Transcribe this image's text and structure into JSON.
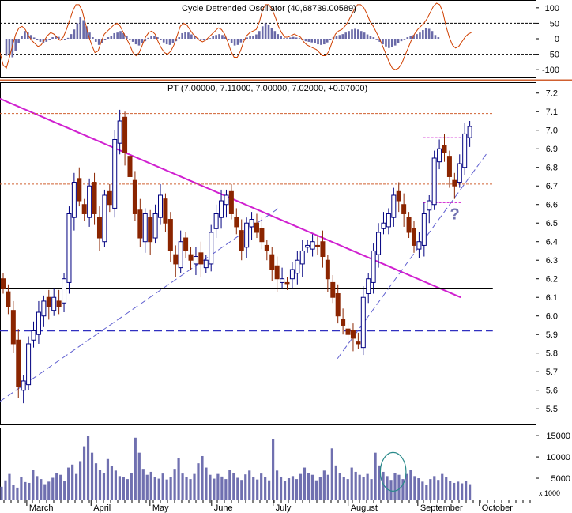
{
  "chart_data": [
    {
      "type": "line",
      "panel": "indicator",
      "header": "Cycle Detrended Oscillator (40,68739.00589)",
      "ylim": [
        -120,
        120
      ],
      "yticks": [
        100,
        50,
        0,
        -50,
        -100
      ],
      "reference_lines": [
        50,
        -50
      ],
      "oscillator_line_color": "#d04000",
      "bar_color": "#6a6aa8",
      "x_end": 0.88,
      "osc": [
        -45,
        -85,
        -95,
        -60,
        -20,
        15,
        35,
        40,
        30,
        10,
        -5,
        -15,
        -25,
        -20,
        -5,
        10,
        20,
        15,
        5,
        -5,
        5,
        30,
        60,
        90,
        110,
        110,
        90,
        50,
        10,
        -20,
        -45,
        -40,
        -10,
        15,
        25,
        35,
        45,
        50,
        40,
        20,
        0,
        -20,
        -45,
        -55,
        -45,
        -20,
        5,
        20,
        25,
        15,
        -10,
        -30,
        -45,
        -50,
        -40,
        -20,
        10,
        40,
        50,
        45,
        30,
        15,
        5,
        -5,
        -10,
        -5,
        5,
        15,
        25,
        35,
        30,
        15,
        -10,
        -40,
        -60,
        -60,
        -40,
        -10,
        10,
        20,
        25,
        30,
        55,
        95,
        110,
        110,
        95,
        70,
        40,
        20,
        5,
        5,
        10,
        15,
        10,
        5,
        -10,
        -20,
        -25,
        -30,
        -35,
        -45,
        -55,
        -55,
        -40,
        -10,
        15,
        25,
        30,
        40,
        55,
        75,
        95,
        110,
        110,
        100,
        80,
        55,
        40,
        20,
        0,
        -25,
        -50,
        -75,
        -95,
        -100,
        -95,
        -80,
        -55,
        -30,
        -5,
        15,
        30,
        40,
        50,
        65,
        85,
        105,
        115,
        110,
        85,
        40,
        5,
        -20,
        -30,
        -25,
        -10,
        5,
        15,
        20
      ],
      "bars": [
        -55,
        -50,
        -60,
        -40,
        -15,
        10,
        25,
        20,
        12,
        4,
        -4,
        -10,
        -15,
        -10,
        -3,
        5,
        8,
        6,
        0,
        -4,
        3,
        15,
        30,
        50,
        70,
        60,
        40,
        20,
        5,
        -10,
        -20,
        -15,
        -5,
        5,
        10,
        18,
        20,
        25,
        18,
        10,
        -2,
        -10,
        -18,
        -22,
        -15,
        -8,
        3,
        8,
        10,
        5,
        -5,
        -12,
        -18,
        -20,
        -15,
        -8,
        5,
        18,
        22,
        20,
        14,
        8,
        2,
        -2,
        -4,
        -2,
        2,
        8,
        12,
        15,
        12,
        6,
        -5,
        -15,
        -22,
        -20,
        -12,
        -4,
        4,
        8,
        10,
        14,
        25,
        40,
        50,
        45,
        35,
        25,
        15,
        8,
        2,
        2,
        4,
        6,
        4,
        2,
        -4,
        -8,
        -10,
        -12,
        -14,
        -18,
        -20,
        -18,
        -12,
        -4,
        5,
        10,
        12,
        15,
        20,
        25,
        30,
        32,
        30,
        25,
        20,
        14,
        10,
        5,
        -2,
        -10,
        -18,
        -25,
        -30,
        -28,
        -22,
        -15,
        -8,
        -2,
        5,
        10,
        12,
        15,
        20,
        28,
        35,
        32,
        25,
        12,
        5
      ],
      "last_label": ""
    },
    {
      "type": "candlestick",
      "panel": "price",
      "header": "PT (7.00000, 7.11000, 7.00000, 7.02000, +0.07000)",
      "ylim": [
        5.42,
        7.25
      ],
      "yticks": [
        7.2,
        7.1,
        7.0,
        6.9,
        6.8,
        6.7,
        6.6,
        6.5,
        6.4,
        6.3,
        6.2,
        6.1,
        6.0,
        5.9,
        5.8,
        5.7,
        5.6,
        5.5
      ],
      "x_labels": [
        {
          "label": "March",
          "x": 0.05
        },
        {
          "label": "April",
          "x": 0.17
        },
        {
          "label": "May",
          "x": 0.28
        },
        {
          "label": "June",
          "x": 0.395
        },
        {
          "label": "July",
          "x": 0.51
        },
        {
          "label": "August",
          "x": 0.65
        },
        {
          "label": "September",
          "x": 0.78
        },
        {
          "label": "October",
          "x": 0.895
        }
      ],
      "up_color": "#000080",
      "down_color": "#8b2500",
      "prices": [
        6.15,
        6.05,
        5.85,
        5.62,
        5.65,
        5.85,
        5.92,
        6.02,
        6.08,
        6.05,
        6.1,
        6.05,
        6.2,
        6.55,
        6.72,
        6.62,
        6.55,
        6.7,
        6.55,
        6.42,
        6.65,
        6.6,
        6.95,
        7.05,
        6.88,
        6.75,
        6.55,
        6.42,
        6.55,
        6.4,
        6.55,
        6.65,
        6.5,
        6.35,
        6.28,
        6.4,
        6.35,
        6.3,
        6.32,
        6.28,
        6.3,
        6.45,
        6.55,
        6.62,
        6.65,
        6.55,
        6.48,
        6.35,
        6.5,
        6.52,
        6.45,
        6.4,
        6.35,
        6.25,
        6.2,
        6.2,
        6.18,
        6.25,
        6.3,
        6.35,
        6.38,
        6.4,
        6.38,
        6.32,
        6.2,
        6.1,
        6.0,
        5.95,
        5.9,
        5.88,
        5.85,
        6.1,
        6.2,
        6.35,
        6.45,
        6.5,
        6.55,
        6.65,
        6.62,
        6.55,
        6.45,
        6.38,
        6.4,
        6.55,
        6.62,
        6.85,
        6.9,
        6.88,
        6.75,
        6.7,
        6.82,
        6.98,
        7.02
      ],
      "x_end": 0.877,
      "annotations": [
        {
          "text": "?",
          "x": 0.84,
          "y": 6.52,
          "color": "#7070b0"
        }
      ],
      "lines": [
        {
          "name": "downtrend",
          "color": "#d020d0",
          "x1": 0.0,
          "y1": 7.17,
          "x2": 0.86,
          "y2": 6.1,
          "width": 2
        },
        {
          "name": "orange-resistance-top",
          "color": "#d06030",
          "x1": 0.0,
          "y1": 7.09,
          "x2": 0.92,
          "y2": 7.09,
          "width": 1,
          "dash": "3,2"
        },
        {
          "name": "orange-level",
          "color": "#d06030",
          "x1": 0.0,
          "y1": 6.71,
          "x2": 0.92,
          "y2": 6.71,
          "width": 1,
          "dash": "3,2"
        },
        {
          "name": "black-level",
          "color": "#000000",
          "x1": 0.0,
          "y1": 6.15,
          "x2": 0.92,
          "y2": 6.15,
          "width": 1
        },
        {
          "name": "blue-support",
          "color": "#3030c0",
          "x1": 0.0,
          "y1": 5.92,
          "x2": 0.92,
          "y2": 5.92,
          "width": 1.5,
          "dash": "10,5"
        },
        {
          "name": "uptrend-left",
          "color": "#6060d0",
          "x1": 0.0,
          "y1": 5.54,
          "x2": 0.52,
          "y2": 6.58,
          "width": 1,
          "dash": "8,4"
        },
        {
          "name": "uptrend-right",
          "color": "#6060d0",
          "x1": 0.63,
          "y1": 5.77,
          "x2": 0.91,
          "y2": 6.88,
          "width": 1,
          "dash": "8,4"
        },
        {
          "name": "box-top",
          "color": "#d020d0",
          "x1": 0.79,
          "y1": 6.96,
          "x2": 0.86,
          "y2": 6.96,
          "width": 1,
          "dash": "3,2"
        },
        {
          "name": "box-bottom",
          "color": "#d020d0",
          "x1": 0.79,
          "y1": 6.61,
          "x2": 0.86,
          "y2": 6.61,
          "width": 1,
          "dash": "3,2"
        }
      ]
    },
    {
      "type": "bar",
      "panel": "volume",
      "ylim": [
        0,
        16500
      ],
      "yticks": [
        15000,
        10000,
        5000
      ],
      "axis_label": "x 1000",
      "bar_color": "#7070b0",
      "x_end": 0.877,
      "volumes": [
        3000,
        4500,
        6000,
        3500,
        2800,
        5200,
        4100,
        3900,
        7000,
        5500,
        4800,
        3600,
        4200,
        5100,
        6200,
        5800,
        4300,
        7500,
        8200,
        6000,
        9000,
        12500,
        15000,
        11000,
        8500,
        7000,
        6200,
        9500,
        7800,
        6800,
        5500,
        5200,
        4800,
        6200,
        14500,
        11000,
        7200,
        5800,
        6500,
        5200,
        4900,
        6100,
        4700,
        5300,
        7200,
        9800,
        6100,
        5200,
        4800,
        6000,
        8500,
        10200,
        7500,
        5800,
        4900,
        6000,
        5400,
        4800,
        7000,
        6200,
        5100,
        4600,
        5900,
        6800,
        5200,
        4700,
        6100,
        5200,
        4500,
        14200,
        6800,
        5200,
        4300,
        5000,
        5500,
        4800,
        6000,
        7500,
        6200,
        5800,
        4500,
        5200,
        6800,
        5800,
        12000,
        8000,
        6200,
        5200,
        4800,
        7500,
        6500,
        5800,
        5200,
        6000,
        4800,
        11000,
        8000,
        6500,
        5500,
        4600,
        6200,
        5800,
        4800,
        6000,
        7000,
        5500,
        5000,
        4200,
        3500,
        4800,
        5500,
        4600,
        6000,
        5200,
        4300,
        3900,
        4200,
        3800,
        4400,
        3600
      ],
      "ellipse": {
        "cx": 0.734,
        "cy": 8000,
        "rx": 0.024,
        "ry": 8000,
        "color": "#2a8a8a"
      }
    }
  ]
}
